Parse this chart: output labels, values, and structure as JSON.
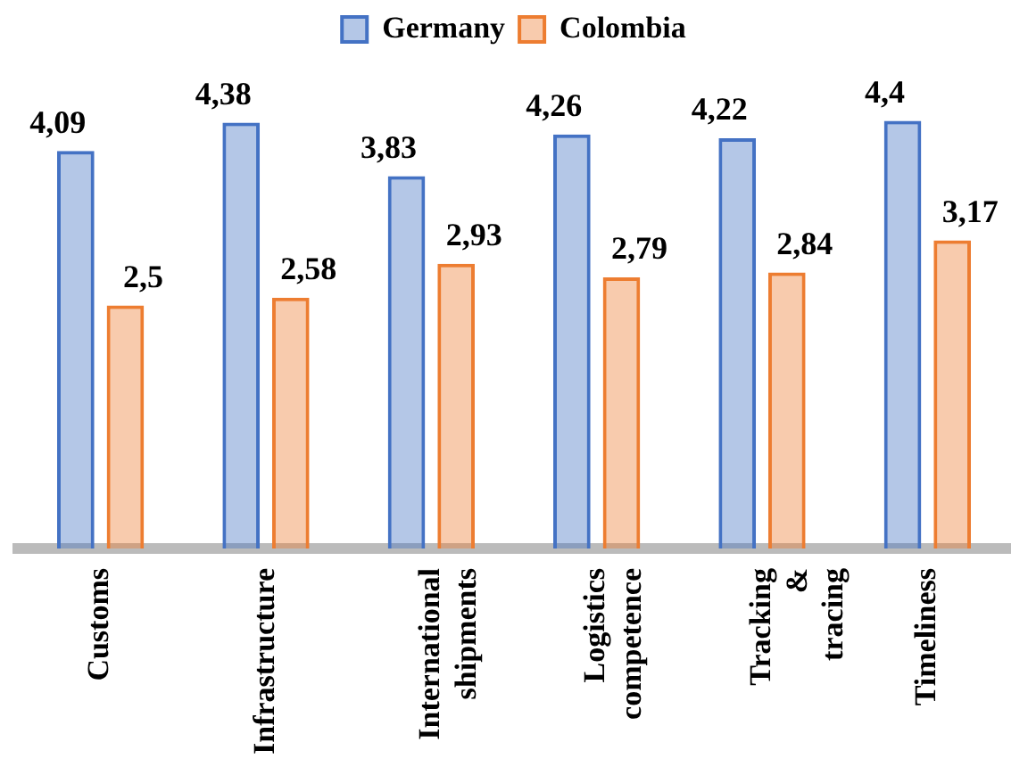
{
  "chart_data": {
    "type": "bar",
    "categories": [
      "Customs",
      "Infrastructure",
      "International shipments",
      "Logistics competence",
      "Tracking & tracing",
      "Timeliness"
    ],
    "series": [
      {
        "name": "Germany",
        "color": "#4472c4",
        "values": [
          4.09,
          4.38,
          3.83,
          4.26,
          4.22,
          4.4
        ],
        "value_labels": [
          "4,09",
          "4,38",
          "3,83",
          "4,26",
          "4,22",
          "4,4"
        ]
      },
      {
        "name": "Colombia",
        "color": "#ed7d31",
        "values": [
          2.5,
          2.58,
          2.93,
          2.79,
          2.84,
          3.17
        ],
        "value_labels": [
          "2,5",
          "2,58",
          "2,93",
          "2,79",
          "2,84",
          "3,17"
        ]
      }
    ],
    "legend": "top",
    "grid": false,
    "tick_labels": "x"
  }
}
